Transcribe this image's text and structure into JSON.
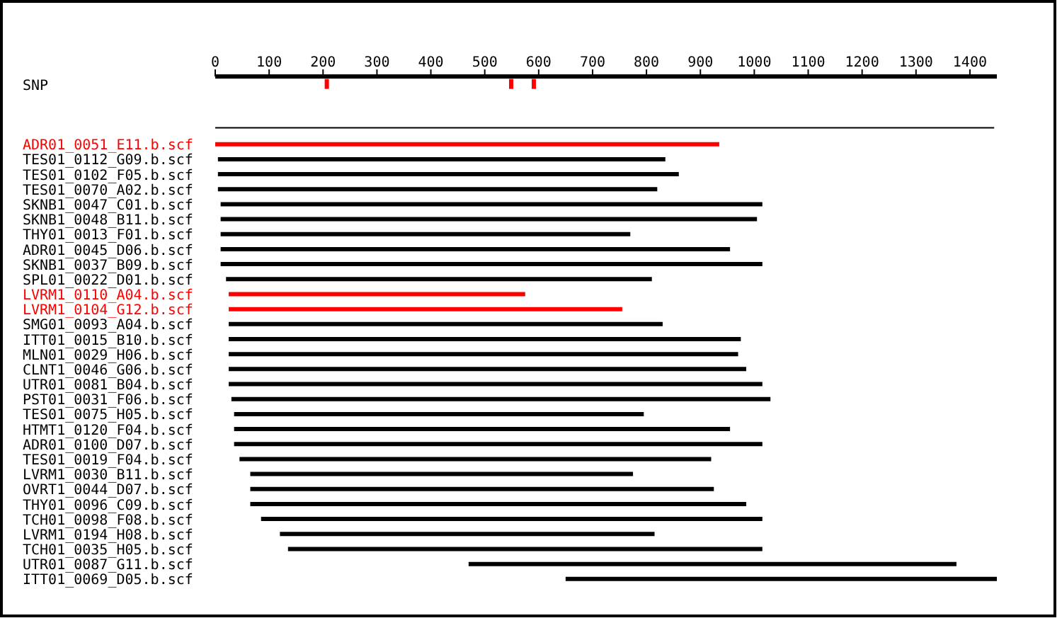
{
  "chart_data": {
    "type": "bar",
    "orientation": "horizontal",
    "xlim": [
      0,
      1450
    ],
    "xticks": [
      0,
      100,
      200,
      300,
      400,
      500,
      600,
      700,
      800,
      900,
      1000,
      1100,
      1200,
      1300,
      1400
    ],
    "grid": false,
    "legend": false,
    "categories": [
      "SNP",
      null,
      "ADR01_0051_E11.b.scf",
      "TES01_0112_G09.b.scf",
      "TES01_0102_F05.b.scf",
      "TES01_0070_A02.b.scf",
      "SKNB1_0047_C01.b.scf",
      "SKNB1_0048_B11.b.scf",
      "THY01_0013_F01.b.scf",
      "ADR01_0045_D06.b.scf",
      "SKNB1_0037_B09.b.scf",
      "SPL01_0022_D01.b.scf",
      "LVRM1_0110_A04.b.scf",
      "LVRM1_0104_G12.b.scf",
      "SMG01_0093_A04.b.scf",
      "ITT01_0015_B10.b.scf",
      "MLN01_0029_H06.b.scf",
      "CLNT1_0046_G06.b.scf",
      "UTR01_0081_B04.b.scf",
      "PST01_0031_F06.b.scf",
      "TES01_0075_H05.b.scf",
      "HTMT1_0120_F04.b.scf",
      "ADR01_0100_D07.b.scf",
      "TES01_0019_F04.b.scf",
      "LVRM1_0030_B11.b.scf",
      "OVRT1_0044_D07.b.scf",
      "THY01_0096_C09.b.scf",
      "TCH01_0098_F08.b.scf",
      "LVRM1_0194_H08.b.scf",
      "TCH01_0035_H05.b.scf",
      "UTR01_0087_G11.b.scf",
      "ITT01_0069_D05.b.scf"
    ],
    "series": [
      {
        "type": "bar",
        "base": [
          null,
          0,
          0,
          5,
          5,
          5,
          10,
          10,
          10,
          10,
          10,
          20,
          25,
          25,
          25,
          25,
          25,
          25,
          25,
          30,
          35,
          35,
          35,
          45,
          65,
          65,
          65,
          85,
          120,
          135,
          470,
          650
        ],
        "colors": [
          "#000000",
          "#000000",
          "#ff0000",
          "#000000",
          "#000000",
          "#000000",
          "#000000",
          "#000000",
          "#000000",
          "#000000",
          "#000000",
          "#000000",
          "#ff0000",
          "#ff0000",
          "#000000",
          "#000000",
          "#000000",
          "#000000",
          "#000000",
          "#000000",
          "#000000",
          "#000000",
          "#000000",
          "#000000",
          "#000000",
          "#000000",
          "#000000",
          "#000000",
          "#000000",
          "#000000",
          "#000000",
          "#000000"
        ],
        "values": [
          null,
          1445,
          935,
          830,
          855,
          815,
          1005,
          995,
          760,
          945,
          1005,
          790,
          550,
          730,
          805,
          950,
          945,
          960,
          990,
          1000,
          760,
          920,
          980,
          875,
          710,
          860,
          920,
          930,
          695,
          880,
          905,
          800
        ]
      },
      {
        "type": "scatter",
        "color": "#ff0000",
        "marker": "square",
        "x": [
          "SNP",
          "SNP",
          "SNP"
        ],
        "values": [
          207,
          549,
          591
        ]
      }
    ]
  }
}
